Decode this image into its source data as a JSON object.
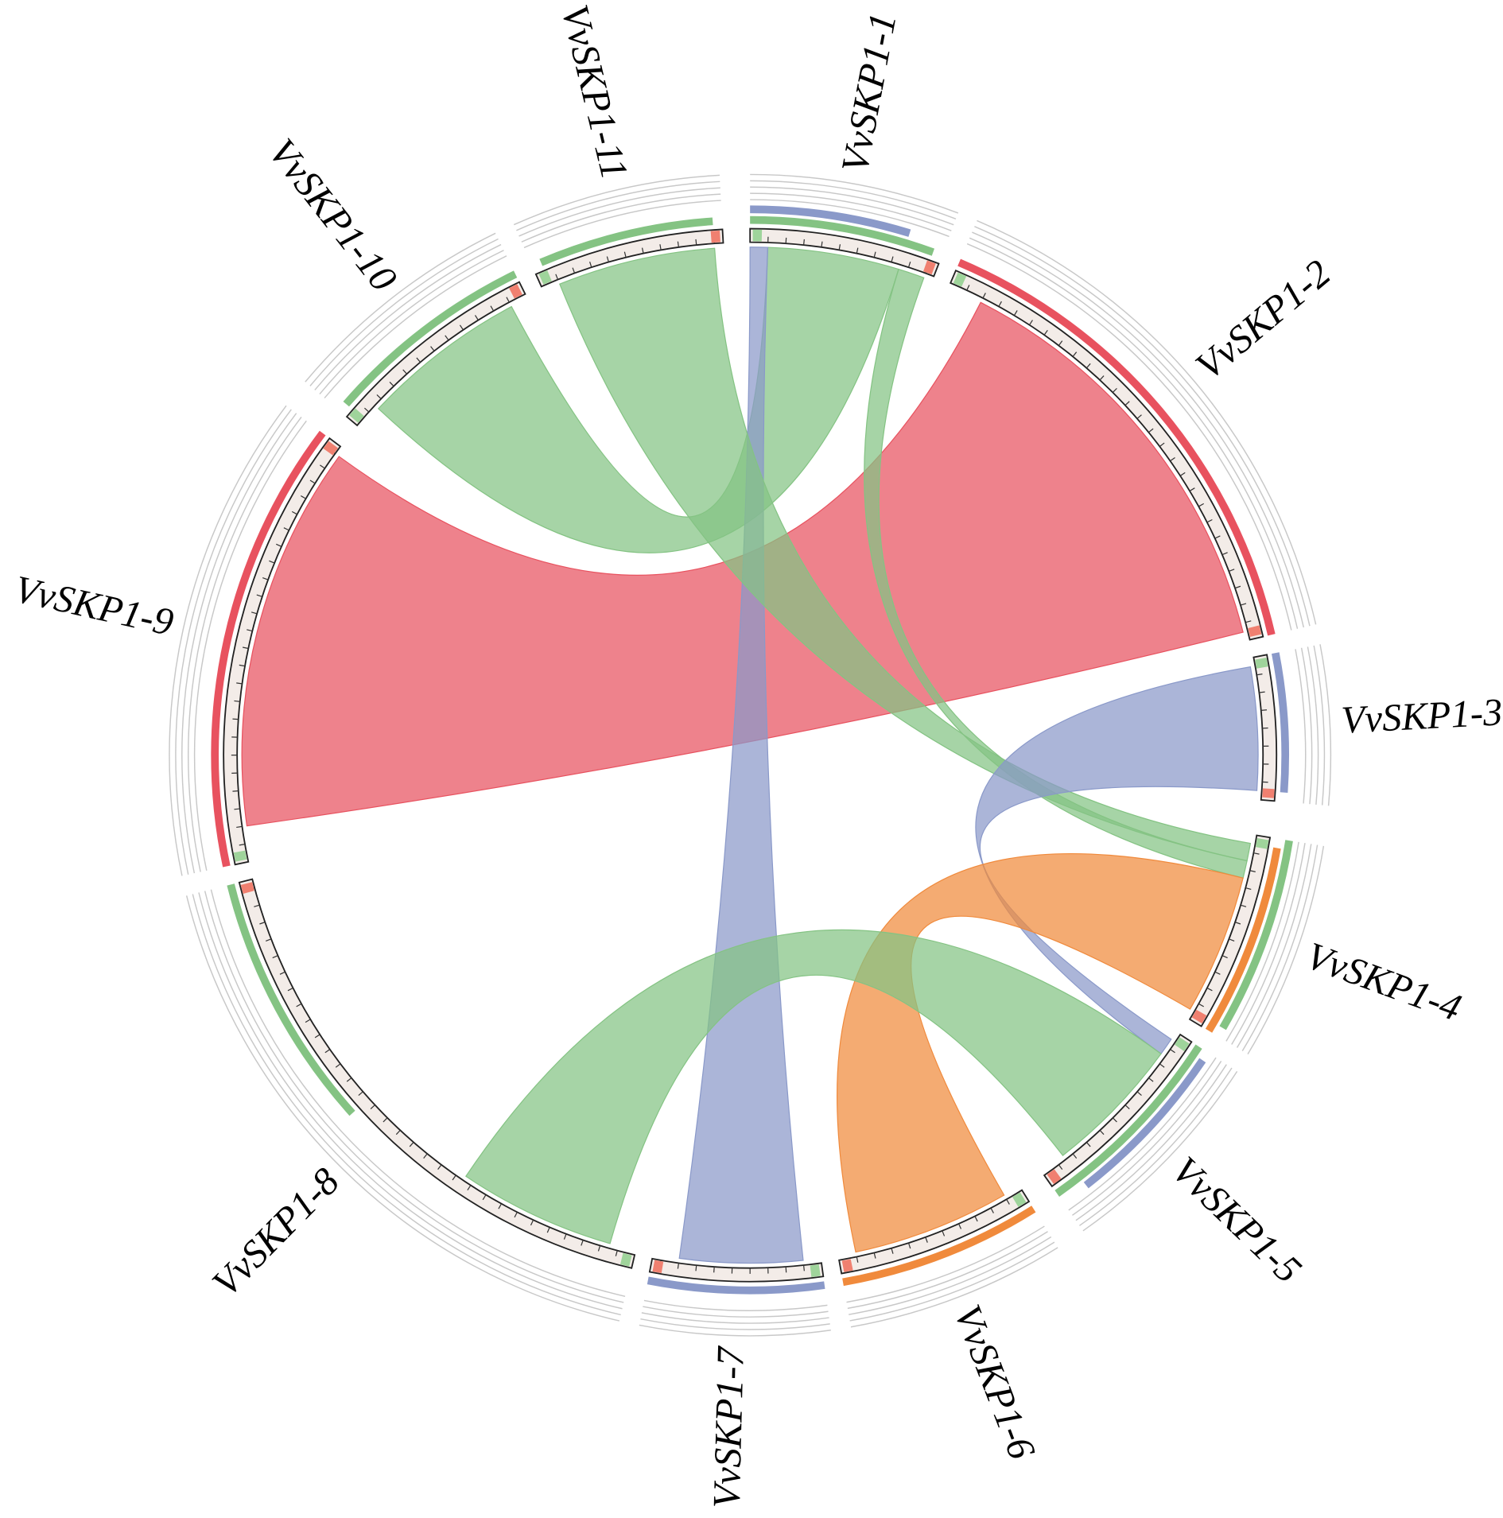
{
  "nodes": [
    {
      "label": "VvSKP1-1"
    },
    {
      "label": "VvSKP1-2"
    },
    {
      "label": "VvSKP1-3"
    },
    {
      "label": "VvSKP1-4"
    },
    {
      "label": "VvSKP1-5"
    },
    {
      "label": "VvSKP1-6"
    },
    {
      "label": "VvSKP1-7"
    },
    {
      "label": "VvSKP1-8"
    },
    {
      "label": "VvSKP1-9"
    },
    {
      "label": "VvSKP1-10"
    },
    {
      "label": "VvSKP1-11"
    }
  ]
}
